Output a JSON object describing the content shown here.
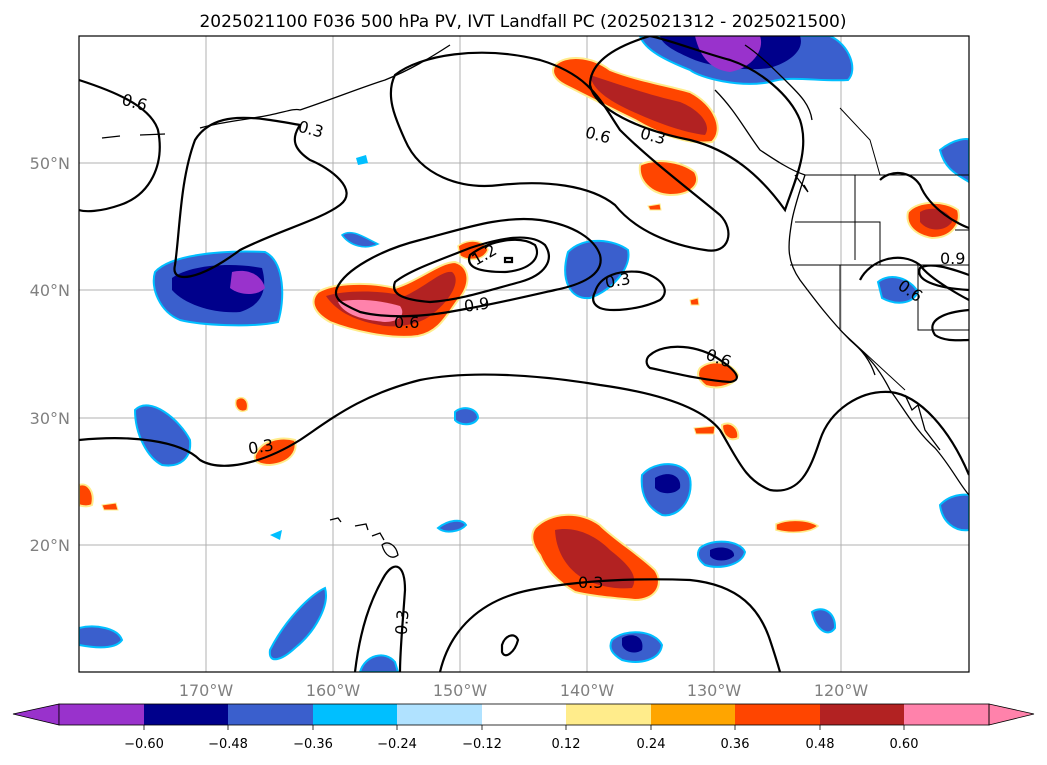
{
  "title": "2025021100 F036 500 hPa PV, IVT Landfall PC (2025021312 - 2025021500)",
  "map": {
    "lon_range": [
      -180,
      -110
    ],
    "lat_range": [
      10,
      60
    ],
    "lat_ticks": [
      {
        "value": 20,
        "label": "20°N"
      },
      {
        "value": 30,
        "label": "30°N"
      },
      {
        "value": 40,
        "label": "40°N"
      },
      {
        "value": 50,
        "label": "50°N"
      }
    ],
    "lon_ticks": [
      {
        "value": -170,
        "label": "170°W"
      },
      {
        "value": -160,
        "label": "160°W"
      },
      {
        "value": -150,
        "label": "150°W"
      },
      {
        "value": -140,
        "label": "140°W"
      },
      {
        "value": -130,
        "label": "130°W"
      },
      {
        "value": -120,
        "label": "120°W"
      }
    ],
    "gridlines": true,
    "contour_labels": [
      "0.6",
      "0.3",
      "0.6",
      "0.3",
      "1.2",
      "0.9",
      "0.6",
      "0.3",
      "0.6",
      "0.3",
      "0.6",
      "0.3",
      "0.3",
      "0.9",
      "0.6"
    ]
  },
  "colorbar": {
    "orientation": "horizontal",
    "extend": "both",
    "levels": [
      -0.72,
      -0.6,
      -0.48,
      -0.36,
      -0.24,
      -0.12,
      0.12,
      0.24,
      0.36,
      0.48,
      0.6,
      0.72
    ],
    "colors": [
      "#9932CC",
      "#00008B",
      "#3A5FCD",
      "#00BFFF",
      "#B0E2FF",
      "#FFFFFF",
      "#FFEC8B",
      "#FFA500",
      "#FF4500",
      "#B22222",
      "#FF82AB"
    ],
    "ticks": [
      "−0.60",
      "−0.48",
      "−0.36",
      "−0.24",
      "−0.12",
      "0.12",
      "0.24",
      "0.36",
      "0.48",
      "0.60"
    ]
  }
}
